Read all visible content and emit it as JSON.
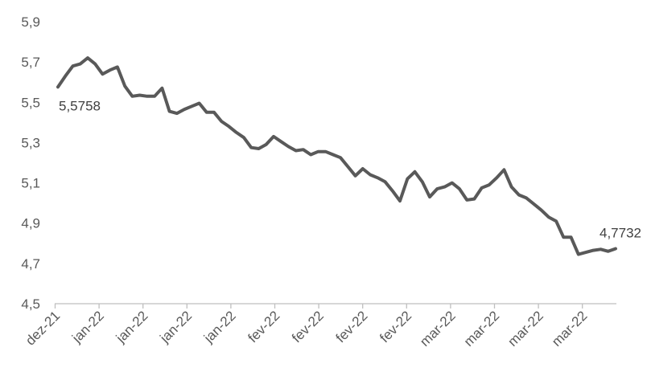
{
  "chart_data": {
    "type": "line",
    "title": "",
    "xlabel": "",
    "ylabel": "",
    "ylim": [
      4.5,
      5.9
    ],
    "yticks": [
      "4,5",
      "4,7",
      "4,9",
      "5,1",
      "5,3",
      "5,5",
      "5,7",
      "5,9"
    ],
    "xticks": [
      "dez-21",
      "jan-22",
      "jan-22",
      "jan-22",
      "jan-22",
      "fev-22",
      "fev-22",
      "fev-22",
      "fev-22",
      "mar-22",
      "mar-22",
      "mar-22",
      "mar-22"
    ],
    "grid": false,
    "legend": "none",
    "series_color": "#595959",
    "series": [
      {
        "values": [
          5.5758,
          5.63,
          5.68,
          5.69,
          5.72,
          5.69,
          5.64,
          5.66,
          5.675,
          5.58,
          5.53,
          5.535,
          5.53,
          5.53,
          5.57,
          5.455,
          5.445,
          5.465,
          5.48,
          5.495,
          5.45,
          5.45,
          5.405,
          5.38,
          5.35,
          5.325,
          5.275,
          5.27,
          5.29,
          5.33,
          5.305,
          5.28,
          5.26,
          5.265,
          5.24,
          5.255,
          5.255,
          5.24,
          5.225,
          5.18,
          5.135,
          5.17,
          5.14,
          5.125,
          5.105,
          5.06,
          5.01,
          5.12,
          5.155,
          5.105,
          5.03,
          5.07,
          5.08,
          5.1,
          5.07,
          5.015,
          5.02,
          5.075,
          5.09,
          5.125,
          5.165,
          5.08,
          5.04,
          5.025,
          4.995,
          4.965,
          4.93,
          4.91,
          4.83,
          4.83,
          4.745,
          4.755,
          4.765,
          4.77,
          4.76,
          4.7732
        ]
      }
    ],
    "annotations": [
      {
        "text": "5,5758",
        "series_index": 0,
        "point": "first"
      },
      {
        "text": "4,7732",
        "series_index": 0,
        "point": "last"
      }
    ]
  }
}
